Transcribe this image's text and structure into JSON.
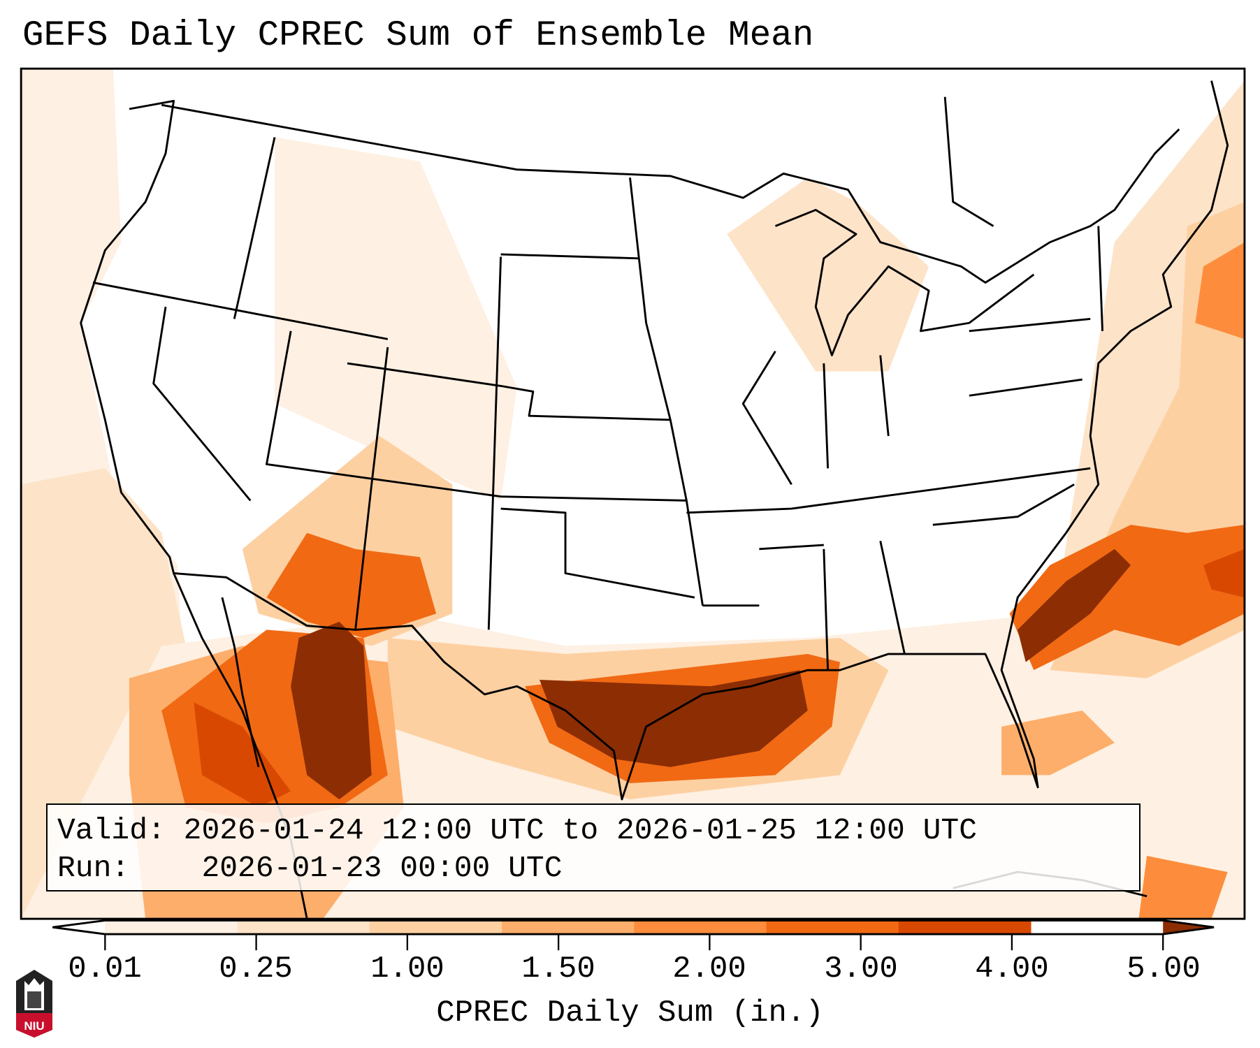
{
  "title": "GEFS Daily CPREC Sum of Ensemble Mean",
  "info": {
    "valid_label": "Valid:",
    "valid_text": "2026-01-24 12:00 UTC to 2026-01-25 12:00 UTC",
    "run_label": "Run:",
    "run_text": "2026-01-23 00:00 UTC"
  },
  "colorbar": {
    "label": "CPREC Daily Sum (in.)",
    "ticks": [
      "0.01",
      "0.25",
      "1.00",
      "1.50",
      "2.00",
      "3.00",
      "4.00",
      "5.00"
    ],
    "colors": [
      "#fef0e2",
      "#fde3c8",
      "#fdd0a2",
      "#fdae6b",
      "#fd8d3c",
      "#f16913",
      "#d94801",
      "#8c2d04"
    ],
    "under_color": "#ffffff",
    "over_color": "#8c2d04"
  },
  "logo": {
    "text": "NIU"
  }
}
